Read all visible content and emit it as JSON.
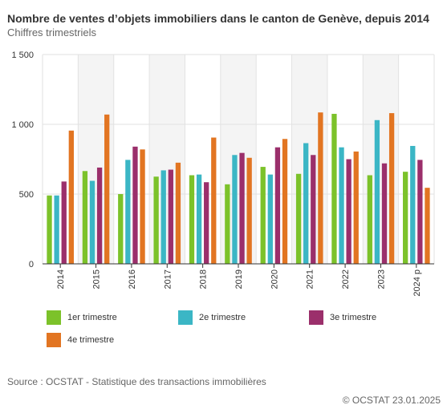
{
  "header": {
    "title": "Nombre de ventes d’objets immobiliers dans le canton de Genève, depuis 2014",
    "subtitle": "Chiffres trimestriels"
  },
  "footer": {
    "source": "Source : OCSTAT - Statistique des transactions immobilières",
    "credits": "© OCSTAT 23.01.2025"
  },
  "chart_data": {
    "type": "bar",
    "title": "Nombre de ventes d’objets immobiliers dans le canton de Genève, depuis 2014",
    "subtitle": "Chiffres trimestriels",
    "xlabel": "",
    "ylabel": "",
    "categories": [
      "2014",
      "2015",
      "2016",
      "2017",
      "2018",
      "2019",
      "2020",
      "2021",
      "2022",
      "2023",
      "2024 p"
    ],
    "y_ticks": [
      "0",
      "500",
      "1 000",
      "1 500"
    ],
    "ylim": [
      0,
      1500
    ],
    "grid": true,
    "alternating_year_bands": true,
    "legend_position": "bottom",
    "series": [
      {
        "name": "1er trimestre",
        "color": "#7cc22a",
        "values": [
          490,
          665,
          500,
          625,
          635,
          570,
          695,
          645,
          1075,
          635,
          660
        ]
      },
      {
        "name": "2e trimestre",
        "color": "#3bb6c5",
        "values": [
          490,
          595,
          745,
          670,
          640,
          780,
          640,
          865,
          835,
          1030,
          845
        ]
      },
      {
        "name": "3e trimestre",
        "color": "#9b2f6b",
        "values": [
          590,
          690,
          840,
          675,
          585,
          795,
          835,
          780,
          750,
          720,
          745
        ]
      },
      {
        "name": "4e trimestre",
        "color": "#e27522",
        "values": [
          955,
          1070,
          820,
          725,
          905,
          760,
          895,
          1085,
          805,
          1080,
          545
        ]
      }
    ]
  }
}
